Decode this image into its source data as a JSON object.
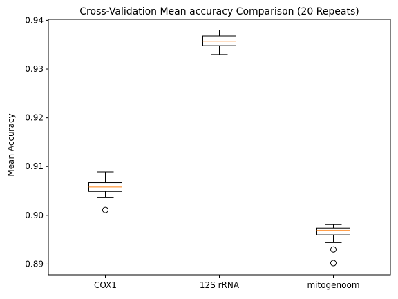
{
  "chart_data": {
    "type": "box",
    "title": "Cross-Validation Mean accuracy Comparison (20 Repeats)",
    "xlabel": "",
    "ylabel": "Mean Accuracy",
    "ylim": [
      0.8878,
      0.9402
    ],
    "y_ticks": [
      "0.89",
      "0.90",
      "0.91",
      "0.92",
      "0.93",
      "0.94"
    ],
    "categories": [
      "COX1",
      "12S rRNA",
      "mitogenoom"
    ],
    "boxes": [
      {
        "category": "COX1",
        "whisker_low": 0.9036,
        "q1": 0.9049,
        "median": 0.9058,
        "q3": 0.9067,
        "whisker_high": 0.9089,
        "outliers": [
          0.9011
        ]
      },
      {
        "category": "12S rRNA",
        "whisker_low": 0.933,
        "q1": 0.9348,
        "median": 0.9357,
        "q3": 0.9368,
        "whisker_high": 0.938,
        "outliers": []
      },
      {
        "category": "mitogenoom",
        "whisker_low": 0.8944,
        "q1": 0.896,
        "median": 0.8969,
        "q3": 0.8974,
        "whisker_high": 0.8981,
        "outliers": [
          0.893,
          0.8902
        ]
      }
    ],
    "grid": false,
    "colors": {
      "box": "#000000",
      "median": "#ff7f0e",
      "outlier_edge": "#000000"
    }
  }
}
